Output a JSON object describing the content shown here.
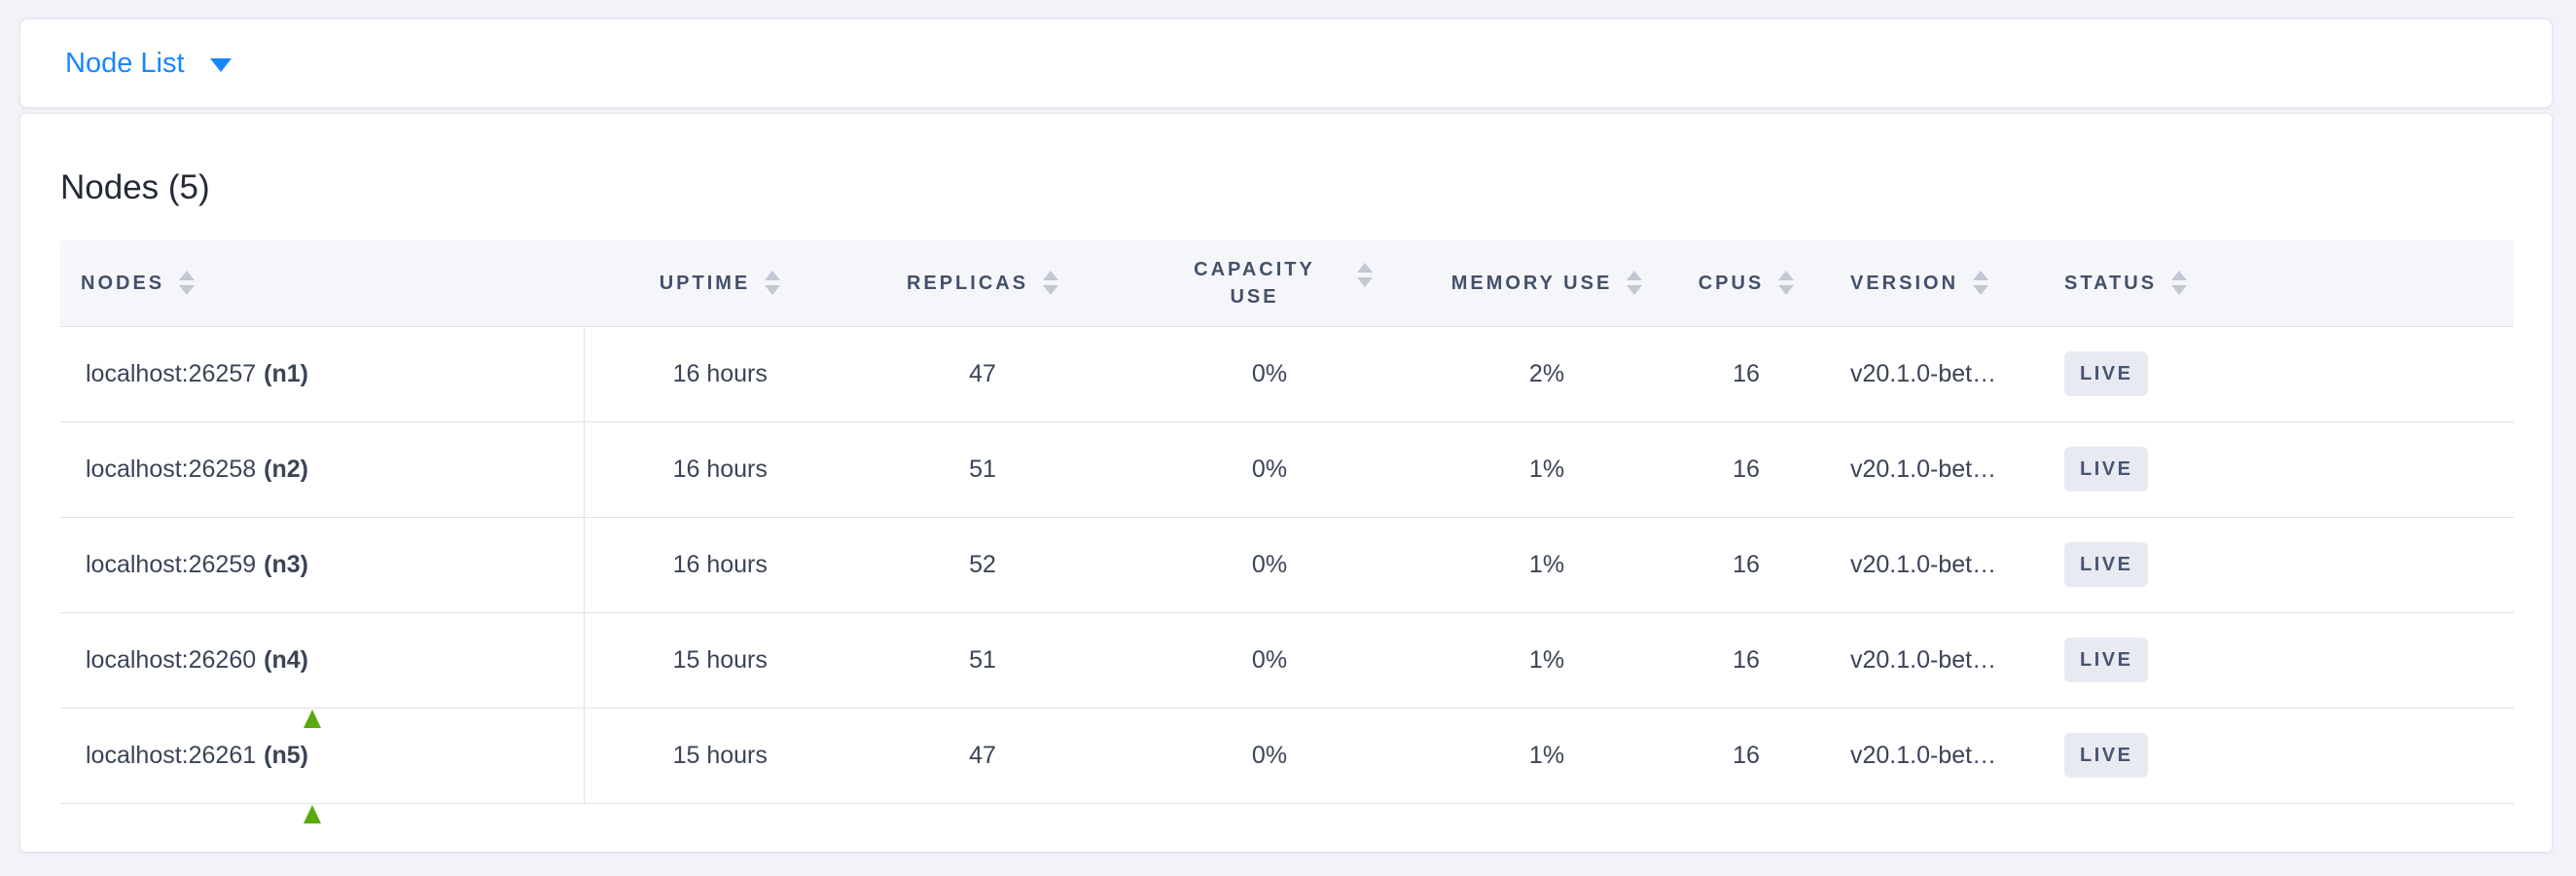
{
  "colors": {
    "accent_blue": "#1787ff",
    "arrow_green": "#5aa90e",
    "badge_bg": "#e8eaf1",
    "badge_text": "#475572",
    "header_text": "#43506b",
    "page_bg": "#f1f3f8"
  },
  "toolbar": {
    "dropdown_label": "Node List"
  },
  "main": {
    "title": "Nodes (5)"
  },
  "table": {
    "columns": [
      {
        "key": "nodes",
        "label": "NODES",
        "sortable": true,
        "align": "left"
      },
      {
        "key": "uptime",
        "label": "UPTIME",
        "sortable": true,
        "align": "center"
      },
      {
        "key": "replicas",
        "label": "REPLICAS",
        "sortable": true,
        "align": "center"
      },
      {
        "key": "capacity_use",
        "label": "CAPACITY USE",
        "sortable": true,
        "align": "center"
      },
      {
        "key": "memory_use",
        "label": "MEMORY USE",
        "sortable": true,
        "align": "center"
      },
      {
        "key": "cpus",
        "label": "CPUS",
        "sortable": true,
        "align": "center"
      },
      {
        "key": "version",
        "label": "VERSION",
        "sortable": true,
        "align": "left"
      },
      {
        "key": "status",
        "label": "STATUS",
        "sortable": true,
        "align": "left"
      }
    ],
    "rows": [
      {
        "address": "localhost:26257",
        "node_id": "(n1)",
        "uptime": "16 hours",
        "replicas": "47",
        "capacity_use": "0%",
        "memory_use": "2%",
        "cpus": "16",
        "version": "v20.1.0-bet…",
        "status": "LIVE",
        "annotated": false
      },
      {
        "address": "localhost:26258",
        "node_id": "(n2)",
        "uptime": "16 hours",
        "replicas": "51",
        "capacity_use": "0%",
        "memory_use": "1%",
        "cpus": "16",
        "version": "v20.1.0-bet…",
        "status": "LIVE",
        "annotated": false
      },
      {
        "address": "localhost:26259",
        "node_id": "(n3)",
        "uptime": "16 hours",
        "replicas": "52",
        "capacity_use": "0%",
        "memory_use": "1%",
        "cpus": "16",
        "version": "v20.1.0-bet…",
        "status": "LIVE",
        "annotated": false
      },
      {
        "address": "localhost:26260",
        "node_id": "(n4)",
        "uptime": "15 hours",
        "replicas": "51",
        "capacity_use": "0%",
        "memory_use": "1%",
        "cpus": "16",
        "version": "v20.1.0-bet…",
        "status": "LIVE",
        "annotated": true
      },
      {
        "address": "localhost:26261",
        "node_id": "(n5)",
        "uptime": "15 hours",
        "replicas": "47",
        "capacity_use": "0%",
        "memory_use": "1%",
        "cpus": "16",
        "version": "v20.1.0-bet…",
        "status": "LIVE",
        "annotated": true
      }
    ]
  }
}
